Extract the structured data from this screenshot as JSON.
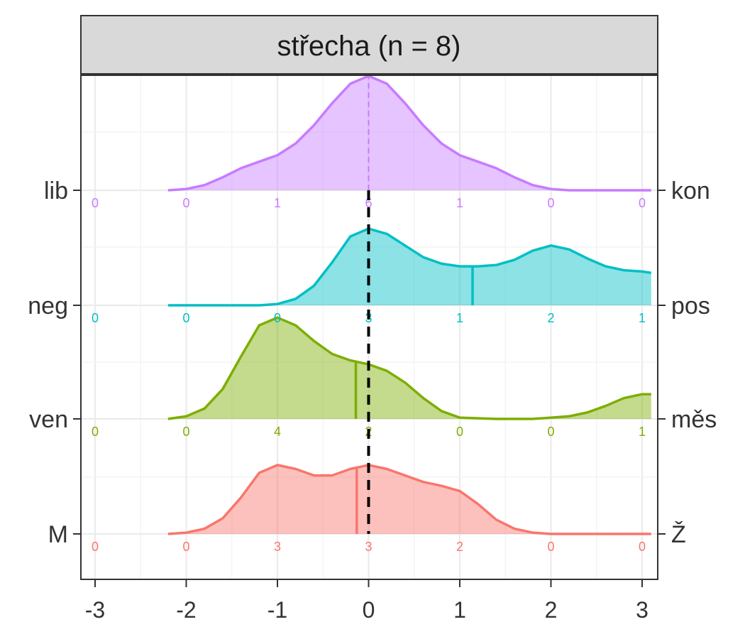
{
  "chart_data": {
    "type": "ridgeline",
    "panel_title": "střecha (n = 8)",
    "x_ticks": [
      "-3",
      "-2",
      "-1",
      "0",
      "1",
      "2",
      "3"
    ],
    "x_tick_values": [
      -3,
      -2,
      -1,
      0,
      1,
      2,
      3
    ],
    "xlim": [
      -3.15,
      3.15
    ],
    "grid": true,
    "reference_line_x": 0,
    "rows": [
      {
        "left_label": "M",
        "right_label": "Ž",
        "color": "#F8766D",
        "scale_points": [
          -3,
          -2,
          -1,
          0,
          1,
          2,
          3
        ],
        "counts": [
          "0",
          "0",
          "3",
          "3",
          "2",
          "0",
          "0"
        ],
        "mean": -0.13,
        "density": [
          [
            -2.2,
            0.0
          ],
          [
            -2.0,
            0.01
          ],
          [
            -1.8,
            0.04
          ],
          [
            -1.6,
            0.12
          ],
          [
            -1.4,
            0.28
          ],
          [
            -1.2,
            0.47
          ],
          [
            -1.0,
            0.53
          ],
          [
            -0.8,
            0.5
          ],
          [
            -0.6,
            0.45
          ],
          [
            -0.4,
            0.45
          ],
          [
            -0.2,
            0.5
          ],
          [
            0.0,
            0.53
          ],
          [
            0.2,
            0.5
          ],
          [
            0.4,
            0.45
          ],
          [
            0.6,
            0.4
          ],
          [
            0.8,
            0.37
          ],
          [
            1.0,
            0.33
          ],
          [
            1.2,
            0.23
          ],
          [
            1.4,
            0.11
          ],
          [
            1.6,
            0.04
          ],
          [
            1.8,
            0.01
          ],
          [
            2.0,
            0.0
          ],
          [
            3.1,
            0.0
          ]
        ]
      },
      {
        "left_label": "ven",
        "right_label": "měs",
        "color": "#7CAE00",
        "scale_points": [
          -3,
          -2,
          -1,
          0,
          1,
          2,
          3
        ],
        "counts": [
          "0",
          "0",
          "4",
          "2",
          "0",
          "0",
          "1"
        ],
        "mean": -0.14,
        "density": [
          [
            -2.2,
            0.0
          ],
          [
            -2.0,
            0.02
          ],
          [
            -1.8,
            0.08
          ],
          [
            -1.6,
            0.23
          ],
          [
            -1.4,
            0.48
          ],
          [
            -1.2,
            0.72
          ],
          [
            -1.0,
            0.78
          ],
          [
            -0.8,
            0.72
          ],
          [
            -0.6,
            0.6
          ],
          [
            -0.4,
            0.5
          ],
          [
            -0.2,
            0.45
          ],
          [
            0.0,
            0.42
          ],
          [
            0.2,
            0.37
          ],
          [
            0.4,
            0.28
          ],
          [
            0.6,
            0.16
          ],
          [
            0.8,
            0.06
          ],
          [
            1.0,
            0.01
          ],
          [
            1.4,
            0.0
          ],
          [
            1.8,
            0.0
          ],
          [
            2.0,
            0.01
          ],
          [
            2.2,
            0.02
          ],
          [
            2.4,
            0.05
          ],
          [
            2.6,
            0.1
          ],
          [
            2.8,
            0.16
          ],
          [
            3.0,
            0.19
          ],
          [
            3.1,
            0.19
          ]
        ]
      },
      {
        "left_label": "neg",
        "right_label": "pos",
        "color": "#00BFC4",
        "scale_points": [
          -3,
          -2,
          -1,
          0,
          1,
          2,
          3
        ],
        "counts": [
          "0",
          "0",
          "0",
          "3",
          "1",
          "2",
          "1"
        ],
        "mean": 1.14,
        "density": [
          [
            -2.2,
            0.0
          ],
          [
            -1.2,
            0.0
          ],
          [
            -1.0,
            0.01
          ],
          [
            -0.8,
            0.05
          ],
          [
            -0.6,
            0.15
          ],
          [
            -0.4,
            0.33
          ],
          [
            -0.2,
            0.53
          ],
          [
            0.0,
            0.59
          ],
          [
            0.2,
            0.55
          ],
          [
            0.4,
            0.46
          ],
          [
            0.6,
            0.37
          ],
          [
            0.8,
            0.32
          ],
          [
            1.0,
            0.3
          ],
          [
            1.2,
            0.3
          ],
          [
            1.4,
            0.31
          ],
          [
            1.6,
            0.35
          ],
          [
            1.8,
            0.42
          ],
          [
            2.0,
            0.46
          ],
          [
            2.2,
            0.43
          ],
          [
            2.4,
            0.36
          ],
          [
            2.6,
            0.3
          ],
          [
            2.8,
            0.27
          ],
          [
            3.0,
            0.26
          ],
          [
            3.1,
            0.25
          ]
        ]
      },
      {
        "left_label": "lib",
        "right_label": "kon",
        "color": "#C77CFF",
        "scale_points": [
          -3,
          -2,
          -1,
          0,
          1,
          2,
          3
        ],
        "counts": [
          "0",
          "0",
          "1",
          "6",
          "1",
          "0",
          "0"
        ],
        "mean": 0,
        "density": [
          [
            -2.2,
            0.0
          ],
          [
            -2.0,
            0.01
          ],
          [
            -1.8,
            0.04
          ],
          [
            -1.6,
            0.1
          ],
          [
            -1.4,
            0.17
          ],
          [
            -1.2,
            0.22
          ],
          [
            -1.0,
            0.27
          ],
          [
            -0.8,
            0.36
          ],
          [
            -0.6,
            0.5
          ],
          [
            -0.4,
            0.67
          ],
          [
            -0.2,
            0.82
          ],
          [
            0.0,
            0.88
          ],
          [
            0.2,
            0.82
          ],
          [
            0.4,
            0.67
          ],
          [
            0.6,
            0.5
          ],
          [
            0.8,
            0.36
          ],
          [
            1.0,
            0.27
          ],
          [
            1.2,
            0.22
          ],
          [
            1.4,
            0.17
          ],
          [
            1.6,
            0.1
          ],
          [
            1.8,
            0.04
          ],
          [
            2.0,
            0.01
          ],
          [
            2.2,
            0.0
          ],
          [
            3.1,
            0.0
          ]
        ]
      }
    ]
  }
}
